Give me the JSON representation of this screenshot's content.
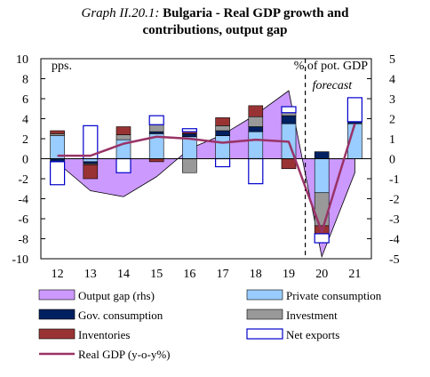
{
  "title": {
    "number": "Graph II.20.1:",
    "line1": "Bulgaria - Real GDP growth and",
    "line2": "contributions, output gap"
  },
  "chart_data": {
    "type": "bar",
    "left_axis_label": "pps.",
    "right_axis_label": "% of pot. GDP",
    "forecast_label": "forecast",
    "categories": [
      "12",
      "13",
      "14",
      "15",
      "16",
      "17",
      "18",
      "19",
      "20",
      "21"
    ],
    "left_ylim": [
      -10,
      10
    ],
    "left_yticks": [
      -10,
      -8,
      -6,
      -4,
      -2,
      0,
      2,
      4,
      6,
      8,
      10
    ],
    "right_ylim": [
      -5,
      5
    ],
    "right_yticks": [
      -5,
      -4,
      -3,
      -2,
      -1,
      0,
      1,
      2,
      3,
      4,
      5
    ],
    "forecast_start_after": "19",
    "series": [
      {
        "name": "Output gap (rhs)",
        "kind": "area",
        "axis": "right",
        "color": "#cc99ff",
        "values": [
          -0.2,
          -1.6,
          -1.9,
          -0.9,
          0.5,
          1.2,
          2.2,
          3.4,
          -4.9,
          -0.7
        ]
      },
      {
        "name": "Private consumption",
        "kind": "bar",
        "axis": "left",
        "color": "#99ccff",
        "values": [
          2.3,
          -0.3,
          1.9,
          2.5,
          2.2,
          2.3,
          2.7,
          3.5,
          -3.4,
          3.5
        ]
      },
      {
        "name": "Gov. consumption",
        "kind": "bar",
        "axis": "left",
        "color": "#002060",
        "values": [
          -0.3,
          -0.2,
          0.0,
          0.2,
          0.3,
          0.5,
          0.5,
          0.8,
          0.7,
          0.2
        ]
      },
      {
        "name": "Investment",
        "kind": "bar",
        "axis": "left",
        "color": "#999999",
        "values": [
          0.2,
          -0.1,
          0.5,
          0.7,
          -1.4,
          0.5,
          1.0,
          0.3,
          -3.3,
          0.0
        ]
      },
      {
        "name": "Inventories",
        "kind": "bar",
        "axis": "left",
        "color": "#993333",
        "values": [
          0.3,
          -1.4,
          0.8,
          -0.3,
          0.2,
          0.8,
          1.1,
          -1.0,
          -0.8,
          0.0
        ]
      },
      {
        "name": "Net exports",
        "kind": "bar",
        "axis": "left",
        "color": "#ffffff",
        "stroke": "#0000cc",
        "values": [
          -2.3,
          3.3,
          -1.4,
          0.9,
          0.3,
          -0.8,
          -2.5,
          0.6,
          -0.9,
          2.4
        ]
      },
      {
        "name": "Real GDP (y-o-y%)",
        "kind": "line",
        "axis": "left",
        "color": "#993366",
        "values": [
          0.3,
          0.3,
          1.5,
          2.2,
          2.0,
          1.6,
          1.9,
          1.7,
          -7.3,
          3.5
        ]
      }
    ]
  }
}
